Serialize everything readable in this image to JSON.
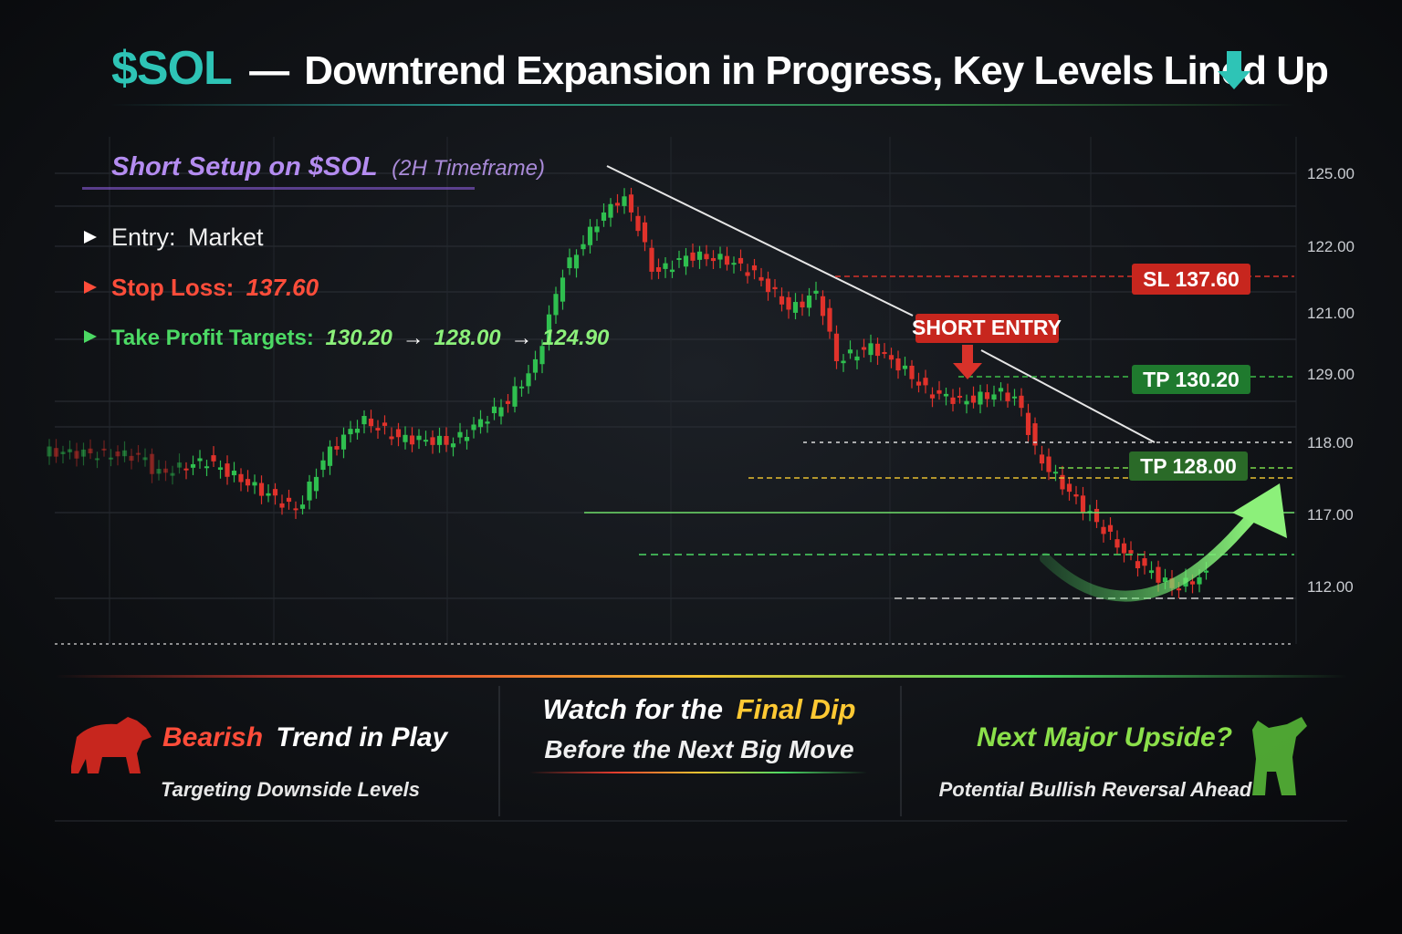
{
  "header": {
    "ticker": "$SOL",
    "dash": "—",
    "title": "Downtrend Expansion in Progress, Key Levels Lined Up"
  },
  "setup": {
    "title": "Short Setup on $SOL",
    "timeframe": "(2H Timeframe)",
    "entry_label": "Entry:",
    "entry_value": "Market",
    "stop_label": "Stop Loss:",
    "stop_value": "137.60",
    "tp_label": "Take Profit Targets:",
    "tp_values": [
      "130.20",
      "128.00",
      "124.90"
    ],
    "tp_separator": "→"
  },
  "axis_labels": [
    "125.00",
    "122.00",
    "121.00",
    "129.00",
    "118.00",
    "117.00",
    "112.00"
  ],
  "tags": {
    "sl": "SL 137.60",
    "tp1": "TP 130.20",
    "tp2": "TP 128.00",
    "short_entry": "SHORT ENTRY"
  },
  "footer": {
    "left": {
      "emphasis": "Bearish",
      "rest": "Trend in Play",
      "subtitle": "Targeting Downside Levels"
    },
    "middle": {
      "line1_prefix": "Watch for the",
      "line1_emphasis": "Final Dip",
      "line2": "Before the Next Big Move"
    },
    "right": {
      "title": "Next Major Upside?",
      "subtitle": "Potential Bullish Reversal Ahead"
    }
  }
}
